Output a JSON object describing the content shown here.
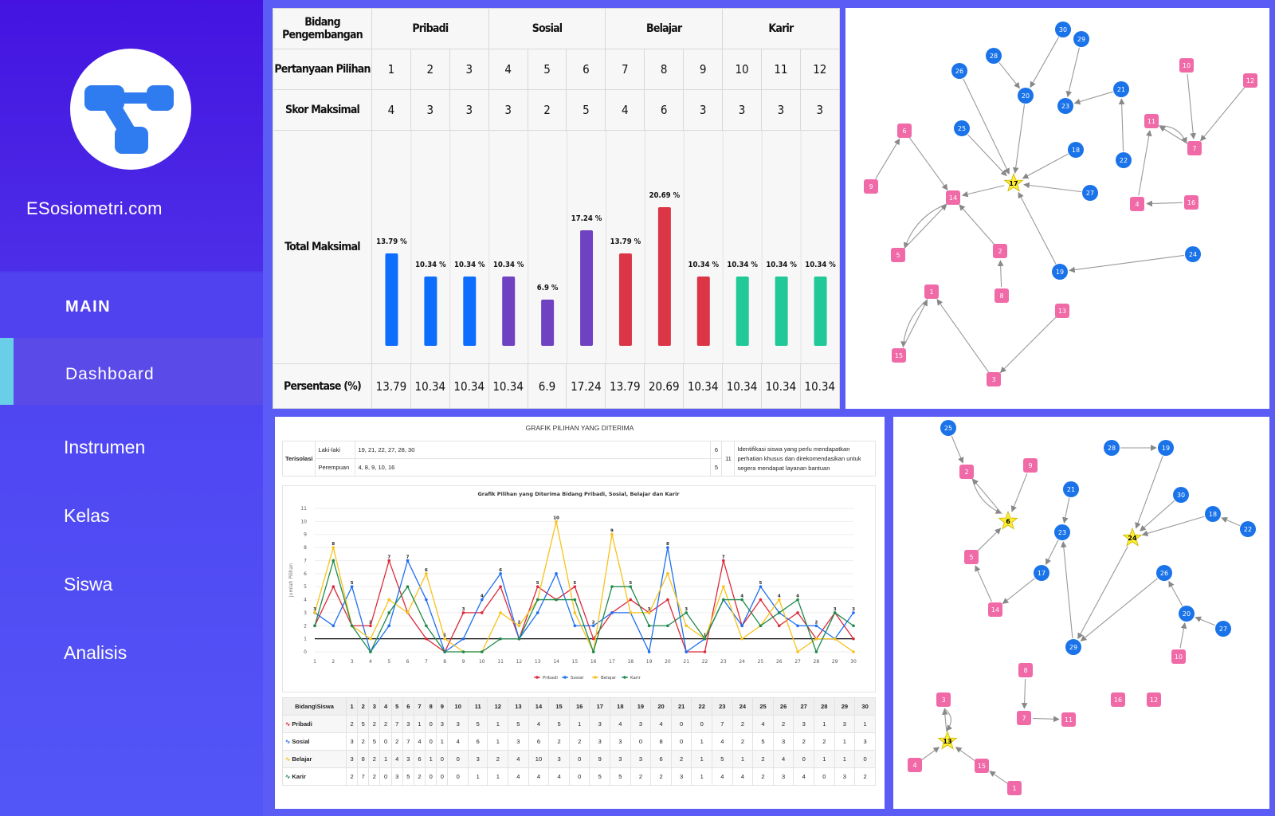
{
  "brand": "ESosiometri.com",
  "nav": {
    "main": "MAIN",
    "dashboard": "Dashboard",
    "instrumen": "Instrumen",
    "kelas": "Kelas",
    "siswa": "Siswa",
    "analisis": "Analisis"
  },
  "colors": {
    "pribadi": "#0d6efd",
    "sosial": "#6f42c1",
    "belajar": "#dc3545",
    "karir": "#20c997",
    "male_node": "#1a73e8",
    "female_node": "#f06aa8",
    "star": "#ffee33"
  },
  "score_table": {
    "h_bidang": "Bidang Pengembangan",
    "groups": [
      "Pribadi",
      "Sosial",
      "Belajar",
      "Karir"
    ],
    "h_pertanyaan": "Pertanyaan Pilihan",
    "questions": [
      "1",
      "2",
      "3",
      "4",
      "5",
      "6",
      "7",
      "8",
      "9",
      "10",
      "11",
      "12"
    ],
    "h_skor": "Skor Maksimal",
    "scores": [
      "4",
      "3",
      "3",
      "3",
      "2",
      "5",
      "4",
      "6",
      "3",
      "3",
      "3",
      "3"
    ],
    "h_total": "Total Maksimal",
    "h_persen": "Persentase (%)",
    "percents": [
      "13.79",
      "10.34",
      "10.34",
      "10.34",
      "6.9",
      "17.24",
      "13.79",
      "20.69",
      "10.34",
      "10.34",
      "10.34",
      "10.34"
    ]
  },
  "chart_data": [
    {
      "type": "bar",
      "categories": [
        "1",
        "2",
        "3",
        "4",
        "5",
        "6",
        "7",
        "8",
        "9",
        "10",
        "11",
        "12"
      ],
      "values": [
        13.79,
        10.34,
        10.34,
        10.34,
        6.9,
        17.24,
        13.79,
        20.69,
        10.34,
        10.34,
        10.34,
        10.34
      ],
      "bar_groups": [
        "Pribadi",
        "Pribadi",
        "Pribadi",
        "Sosial",
        "Sosial",
        "Sosial",
        "Belajar",
        "Belajar",
        "Belajar",
        "Karir",
        "Karir",
        "Karir"
      ],
      "value_labels": [
        "13.79 %",
        "10.34 %",
        "10.34 %",
        "10.34 %",
        "6.9 %",
        "17.24 %",
        "13.79 %",
        "20.69 %",
        "10.34 %",
        "10.34 %",
        "10.34 %",
        "10.34 %"
      ],
      "ylim": [
        0,
        22
      ]
    },
    {
      "type": "line",
      "title": "Grafik Pilihan yang Diterima Bidang Pribadi, Sosial, Belajar dan Karir",
      "ylabel": "Jumlah Pilihan",
      "x": [
        1,
        2,
        3,
        4,
        5,
        6,
        7,
        8,
        9,
        10,
        11,
        12,
        13,
        14,
        15,
        16,
        17,
        18,
        19,
        20,
        21,
        22,
        23,
        24,
        25,
        26,
        27,
        28,
        29,
        30
      ],
      "yticks": [
        0,
        1,
        2,
        3,
        4,
        5,
        6,
        7,
        8,
        9,
        10,
        11
      ],
      "ylim": [
        0,
        11
      ],
      "threshold": 1,
      "series": [
        {
          "name": "Pribadi",
          "color": "#dc2a3b",
          "values": [
            2,
            5,
            2,
            2,
            7,
            3,
            1,
            0,
            3,
            3,
            5,
            1,
            5,
            4,
            5,
            1,
            3,
            4,
            3,
            4,
            0,
            0,
            7,
            2,
            4,
            2,
            3,
            1,
            3,
            1
          ]
        },
        {
          "name": "Sosial",
          "color": "#1e6ff0",
          "values": [
            3,
            2,
            5,
            0,
            2,
            7,
            4,
            0,
            1,
            4,
            6,
            1,
            3,
            6,
            2,
            2,
            3,
            3,
            0,
            8,
            0,
            1,
            4,
            2,
            5,
            3,
            2,
            2,
            1,
            3
          ]
        },
        {
          "name": "Belajar",
          "color": "#f7c21a",
          "values": [
            3,
            8,
            2,
            1,
            4,
            3,
            6,
            1,
            0,
            0,
            3,
            2,
            4,
            10,
            3,
            0,
            9,
            3,
            3,
            6,
            2,
            1,
            5,
            1,
            2,
            4,
            0,
            1,
            1,
            0
          ]
        },
        {
          "name": "Karir",
          "color": "#1f8a4c",
          "values": [
            2,
            7,
            2,
            0,
            3,
            5,
            2,
            0,
            0,
            0,
            1,
            1,
            4,
            4,
            4,
            0,
            5,
            5,
            2,
            2,
            3,
            1,
            4,
            4,
            2,
            3,
            4,
            0,
            3,
            2
          ]
        }
      ]
    }
  ],
  "grafik": {
    "title": "GRAFIK PILIHAN YANG DITERIMA",
    "terisolasi": "Terisolasi",
    "laki_label": "Laki-laki",
    "laki_list": "19, 21, 22, 27, 28, 30",
    "laki_count": "6",
    "perempuan_label": "Perempuan",
    "perempuan_list": "4, 8, 9, 10, 16",
    "perempuan_count": "5",
    "total": "11",
    "note_1": "Identifikasi siswa yang perlu mendapatkan",
    "note_2": "perhatian khusus dan direkomendasikan untuk",
    "note_3": "segera mendapat layanan bantuan",
    "bottom_header": "Bidang\\Siswa",
    "bottom_rows": [
      "Pribadi",
      "Sosial",
      "Belajar",
      "Karir"
    ]
  },
  "sociogram1": {
    "star": "17",
    "nodes": [
      {
        "id": "30",
        "g": "m"
      },
      {
        "id": "29",
        "g": "m"
      },
      {
        "id": "28",
        "g": "m"
      },
      {
        "id": "26",
        "g": "m"
      },
      {
        "id": "20",
        "g": "m"
      },
      {
        "id": "23",
        "g": "m"
      },
      {
        "id": "21",
        "g": "m"
      },
      {
        "id": "25",
        "g": "m"
      },
      {
        "id": "18",
        "g": "m"
      },
      {
        "id": "27",
        "g": "m"
      },
      {
        "id": "22",
        "g": "m"
      },
      {
        "id": "24",
        "g": "m"
      },
      {
        "id": "19",
        "g": "m"
      },
      {
        "id": "6",
        "g": "f"
      },
      {
        "id": "9",
        "g": "f"
      },
      {
        "id": "14",
        "g": "f"
      },
      {
        "id": "5",
        "g": "f"
      },
      {
        "id": "2",
        "g": "f"
      },
      {
        "id": "8",
        "g": "f"
      },
      {
        "id": "10",
        "g": "f"
      },
      {
        "id": "12",
        "g": "f"
      },
      {
        "id": "11",
        "g": "f"
      },
      {
        "id": "7",
        "g": "f"
      },
      {
        "id": "4",
        "g": "f"
      },
      {
        "id": "16",
        "g": "f"
      },
      {
        "id": "1",
        "g": "f"
      },
      {
        "id": "15",
        "g": "f"
      },
      {
        "id": "13",
        "g": "f"
      },
      {
        "id": "3",
        "g": "f"
      }
    ]
  },
  "sociogram2": {
    "stars": [
      "6",
      "24",
      "13"
    ],
    "nodes": [
      {
        "id": "25",
        "g": "m"
      },
      {
        "id": "28",
        "g": "m"
      },
      {
        "id": "19",
        "g": "m"
      },
      {
        "id": "21",
        "g": "m"
      },
      {
        "id": "30",
        "g": "m"
      },
      {
        "id": "18",
        "g": "m"
      },
      {
        "id": "22",
        "g": "m"
      },
      {
        "id": "23",
        "g": "m"
      },
      {
        "id": "17",
        "g": "m"
      },
      {
        "id": "26",
        "g": "m"
      },
      {
        "id": "20",
        "g": "m"
      },
      {
        "id": "27",
        "g": "m"
      },
      {
        "id": "29",
        "g": "m"
      },
      {
        "id": "2",
        "g": "f"
      },
      {
        "id": "9",
        "g": "f"
      },
      {
        "id": "5",
        "g": "f"
      },
      {
        "id": "14",
        "g": "f"
      },
      {
        "id": "8",
        "g": "f"
      },
      {
        "id": "7",
        "g": "f"
      },
      {
        "id": "11",
        "g": "f"
      },
      {
        "id": "10",
        "g": "f"
      },
      {
        "id": "16",
        "g": "f"
      },
      {
        "id": "12",
        "g": "f"
      },
      {
        "id": "3",
        "g": "f"
      },
      {
        "id": "4",
        "g": "f"
      },
      {
        "id": "15",
        "g": "f"
      },
      {
        "id": "1",
        "g": "f"
      }
    ]
  }
}
